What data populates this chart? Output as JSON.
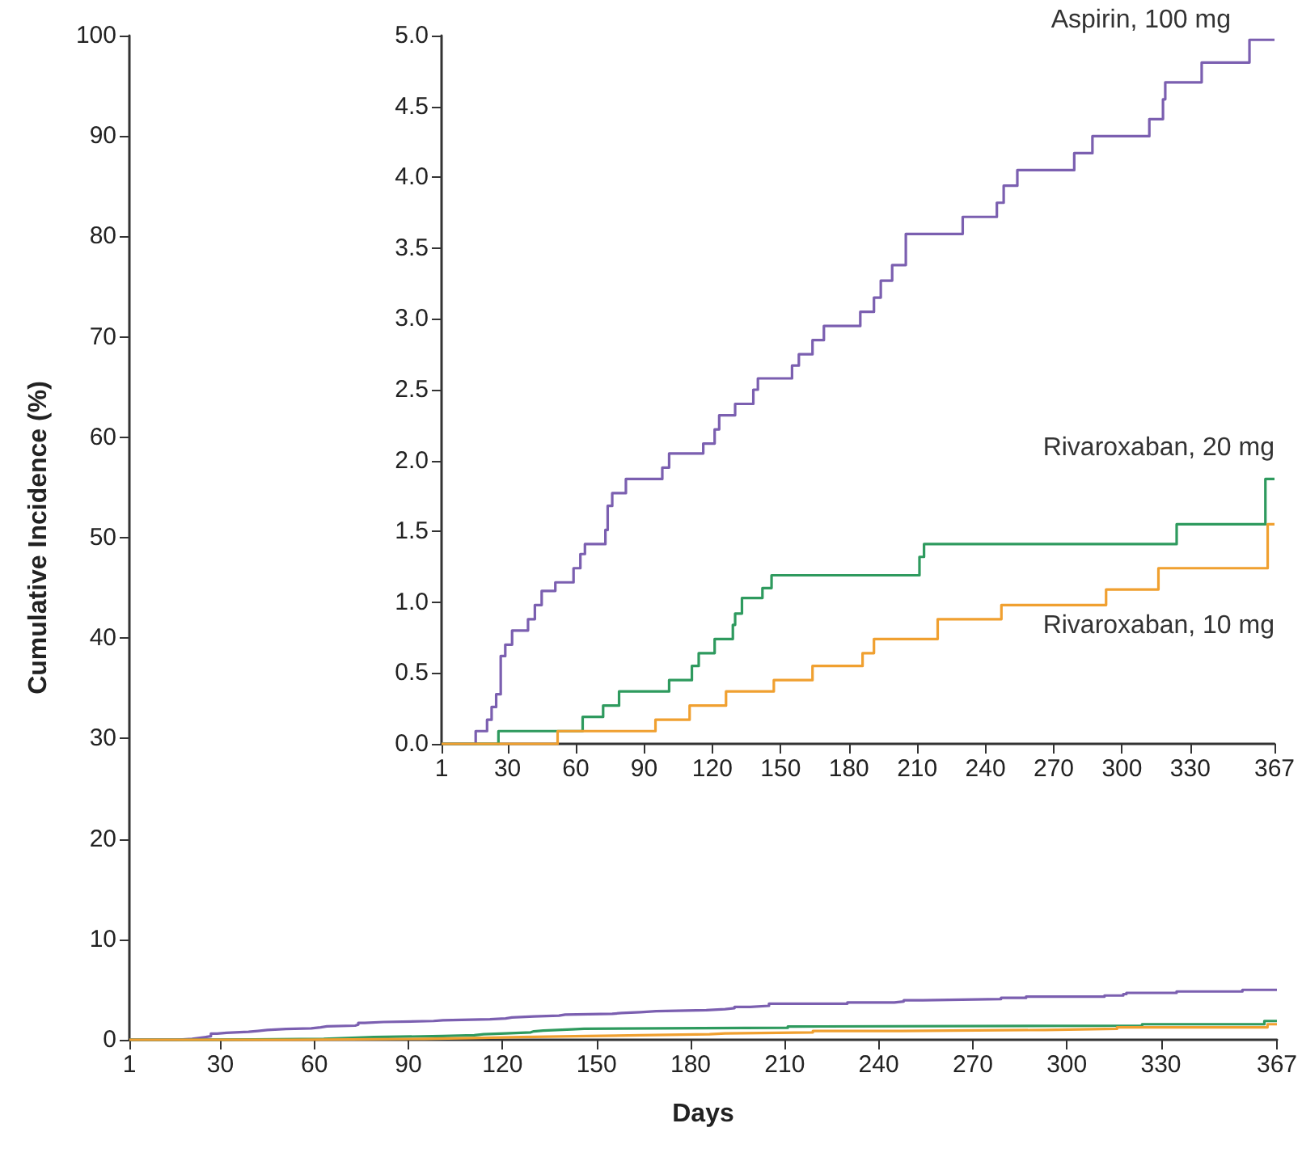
{
  "chart_data": [
    {
      "type": "step",
      "xlabel": "Days",
      "ylabel": "Cumulative Incidence (%)",
      "xlim": [
        1,
        367
      ],
      "ylim": [
        0,
        100
      ],
      "xticks": [
        1,
        30,
        60,
        90,
        120,
        150,
        180,
        210,
        240,
        270,
        300,
        330,
        367
      ],
      "yticks": [
        0,
        10,
        20,
        30,
        40,
        50,
        60,
        70,
        80,
        90,
        100
      ],
      "grid": false,
      "legend": false,
      "series": [
        {
          "color": "#7b5fb0",
          "x": [
            1,
            16,
            21,
            23,
            25,
            27,
            29,
            32,
            39,
            42,
            45,
            51,
            59,
            62,
            64,
            73,
            74,
            76,
            82,
            98,
            101,
            116,
            121,
            123,
            130,
            138,
            140,
            155,
            158,
            164,
            169,
            185,
            191,
            194,
            199,
            205,
            230,
            245,
            248,
            254,
            279,
            287,
            312,
            318,
            319,
            335,
            356,
            367
          ],
          "values": [
            0,
            0.09,
            0.17,
            0.26,
            0.35,
            0.62,
            0.7,
            0.8,
            0.88,
            0.98,
            1.08,
            1.14,
            1.24,
            1.34,
            1.41,
            1.51,
            1.68,
            1.77,
            1.87,
            1.95,
            2.05,
            2.12,
            2.22,
            2.32,
            2.4,
            2.5,
            2.58,
            2.67,
            2.75,
            2.85,
            2.95,
            3.05,
            3.15,
            3.27,
            3.38,
            3.6,
            3.72,
            3.82,
            3.94,
            4.05,
            4.17,
            4.29,
            4.41,
            4.55,
            4.67,
            4.81,
            4.97,
            4.97
          ]
        },
        {
          "color": "#2e9a5e",
          "x": [
            1,
            26,
            63,
            72,
            79,
            101,
            111,
            114,
            121,
            129,
            130,
            133,
            142,
            146,
            211,
            213,
            324,
            363,
            367
          ],
          "values": [
            0,
            0.09,
            0.19,
            0.27,
            0.37,
            0.45,
            0.55,
            0.64,
            0.74,
            0.84,
            0.92,
            1.03,
            1.1,
            1.19,
            1.32,
            1.41,
            1.55,
            1.87,
            1.87
          ]
        },
        {
          "color": "#f0a030",
          "x": [
            1,
            52,
            95,
            110,
            126,
            147,
            164,
            186,
            191,
            219,
            247,
            293,
            316,
            364,
            367
          ],
          "values": [
            0,
            0.09,
            0.17,
            0.27,
            0.37,
            0.45,
            0.55,
            0.64,
            0.74,
            0.88,
            0.98,
            1.09,
            1.24,
            1.55,
            1.55
          ]
        }
      ]
    },
    {
      "type": "step",
      "xlim": [
        1,
        367
      ],
      "ylim": [
        0,
        5
      ],
      "xticks": [
        1,
        30,
        60,
        90,
        120,
        150,
        180,
        210,
        240,
        270,
        300,
        330,
        367
      ],
      "yticks": [
        {
          "value": 0,
          "label": "0.0"
        },
        {
          "value": 0.5,
          "label": "0.5"
        },
        {
          "value": 1,
          "label": "1.0"
        },
        {
          "value": 1.5,
          "label": "1.5"
        },
        {
          "value": 2,
          "label": "2.0"
        },
        {
          "value": 2.5,
          "label": "2.5"
        },
        {
          "value": 3,
          "label": "3.0"
        },
        {
          "value": 3.5,
          "label": "3.5"
        },
        {
          "value": 4,
          "label": "4.0"
        },
        {
          "value": 4.5,
          "label": "4.5"
        },
        {
          "value": 5,
          "label": "5.0"
        }
      ],
      "grid": false,
      "legend": false,
      "series": [
        {
          "name": "Aspirin, 100 mg",
          "color": "#7b5fb0",
          "x": [
            1,
            16,
            21,
            23,
            25,
            27,
            29,
            32,
            39,
            42,
            45,
            51,
            59,
            62,
            64,
            73,
            74,
            76,
            82,
            98,
            101,
            116,
            121,
            123,
            130,
            138,
            140,
            155,
            158,
            164,
            169,
            185,
            191,
            194,
            199,
            205,
            230,
            245,
            248,
            254,
            279,
            287,
            312,
            318,
            319,
            335,
            356,
            367
          ],
          "values": [
            0,
            0.09,
            0.17,
            0.26,
            0.35,
            0.62,
            0.7,
            0.8,
            0.88,
            0.98,
            1.08,
            1.14,
            1.24,
            1.34,
            1.41,
            1.51,
            1.68,
            1.77,
            1.87,
            1.95,
            2.05,
            2.12,
            2.22,
            2.32,
            2.4,
            2.5,
            2.58,
            2.67,
            2.75,
            2.85,
            2.95,
            3.05,
            3.15,
            3.27,
            3.38,
            3.6,
            3.72,
            3.82,
            3.94,
            4.05,
            4.17,
            4.29,
            4.41,
            4.55,
            4.67,
            4.81,
            4.97,
            4.97
          ]
        },
        {
          "name": "Rivaroxaban, 20 mg",
          "color": "#2e9a5e",
          "x": [
            1,
            26,
            63,
            72,
            79,
            101,
            111,
            114,
            121,
            129,
            130,
            133,
            142,
            146,
            211,
            213,
            324,
            363,
            367
          ],
          "values": [
            0,
            0.09,
            0.19,
            0.27,
            0.37,
            0.45,
            0.55,
            0.64,
            0.74,
            0.84,
            0.92,
            1.03,
            1.1,
            1.19,
            1.32,
            1.41,
            1.55,
            1.87,
            1.87
          ]
        },
        {
          "name": "Rivaroxaban, 10 mg",
          "color": "#f0a030",
          "x": [
            1,
            52,
            95,
            110,
            126,
            147,
            164,
            186,
            191,
            219,
            247,
            293,
            316,
            364,
            367
          ],
          "values": [
            0,
            0.09,
            0.17,
            0.27,
            0.37,
            0.45,
            0.55,
            0.64,
            0.74,
            0.88,
            0.98,
            1.09,
            1.24,
            1.55,
            1.55
          ]
        }
      ]
    }
  ]
}
